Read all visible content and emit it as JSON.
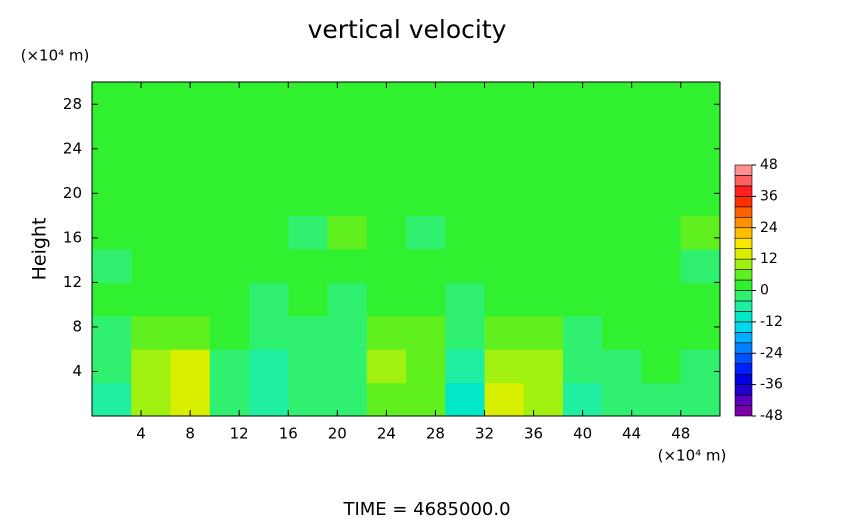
{
  "chart_data": {
    "type": "heatmap",
    "title": "vertical velocity",
    "y_unit": "(×10⁴ m)",
    "x_unit": "(×10⁴ m)",
    "ylabel": "Height",
    "footer": "TIME = 4685000.0",
    "xlim": [
      0,
      51.2
    ],
    "ylim": [
      0,
      30
    ],
    "xticks": [
      4,
      8,
      12,
      16,
      20,
      24,
      28,
      32,
      36,
      40,
      44,
      48
    ],
    "yticks": [
      4,
      8,
      12,
      16,
      20,
      24,
      28
    ],
    "x": [
      1.6,
      4.8,
      8,
      11.2,
      14.4,
      17.6,
      20.8,
      24,
      27.2,
      30.4,
      33.6,
      36.8,
      40,
      43.2,
      46.4,
      49.6
    ],
    "y": [
      1.5,
      4.5,
      7.5,
      10.5,
      13.5,
      16.5,
      19.5,
      22.5,
      25.5,
      28.5
    ],
    "z": [
      [
        -6,
        10,
        14,
        -2,
        -8,
        -4,
        -4,
        6,
        4,
        -10,
        12,
        10,
        -6,
        -4,
        -2,
        -4
      ],
      [
        -4,
        8,
        12,
        -2,
        -6,
        -2,
        -4,
        8,
        6,
        -8,
        10,
        8,
        -4,
        -2,
        0,
        -2
      ],
      [
        -2,
        4,
        6,
        0,
        -4,
        -2,
        -2,
        4,
        4,
        -4,
        4,
        4,
        -2,
        0,
        0,
        0
      ],
      [
        0,
        2,
        2,
        1,
        -1,
        0,
        -2,
        2,
        2,
        -1,
        2,
        1,
        0,
        1,
        2,
        0
      ],
      [
        -1,
        0,
        2,
        1,
        0,
        2,
        0,
        1,
        2,
        0,
        1,
        2,
        0,
        2,
        1,
        -1
      ],
      [
        1,
        2,
        1,
        0,
        3,
        -1,
        6,
        1,
        -1,
        0,
        1,
        2,
        0,
        1,
        2,
        6
      ],
      [
        1,
        2,
        2,
        2,
        2,
        2,
        2,
        2,
        2,
        2,
        2,
        2,
        2,
        2,
        2,
        2
      ],
      [
        2,
        2,
        2,
        2,
        2,
        2,
        2,
        2,
        2,
        2,
        2,
        2,
        2,
        2,
        2,
        2
      ],
      [
        2,
        2,
        2,
        2,
        2,
        2,
        2,
        2,
        2,
        2,
        2,
        2,
        2,
        2,
        2,
        2
      ],
      [
        2,
        2,
        2,
        2,
        2,
        2,
        2,
        2,
        2,
        2,
        2,
        2,
        2,
        2,
        2,
        2
      ]
    ],
    "colorbar": {
      "levels": [
        -48,
        -44,
        -40,
        -36,
        -32,
        -28,
        -24,
        -20,
        -16,
        -12,
        -8,
        -4,
        0,
        4,
        8,
        12,
        16,
        20,
        24,
        28,
        32,
        36,
        40,
        44,
        48
      ],
      "colors": [
        "#7a00a8",
        "#5a00c0",
        "#2000d0",
        "#0000e0",
        "#0020ff",
        "#0050ff",
        "#0080ff",
        "#00b0ff",
        "#00d8f0",
        "#00e8c8",
        "#20eea0",
        "#30f070",
        "#30f030",
        "#60f020",
        "#a0f010",
        "#d8f000",
        "#f8e800",
        "#ffc000",
        "#ff9000",
        "#ff6000",
        "#ff3000",
        "#ff2020",
        "#ff6060",
        "#ff9090"
      ],
      "ticks": [
        -48,
        -36,
        -24,
        -12,
        0,
        12,
        24,
        36,
        48
      ]
    }
  }
}
